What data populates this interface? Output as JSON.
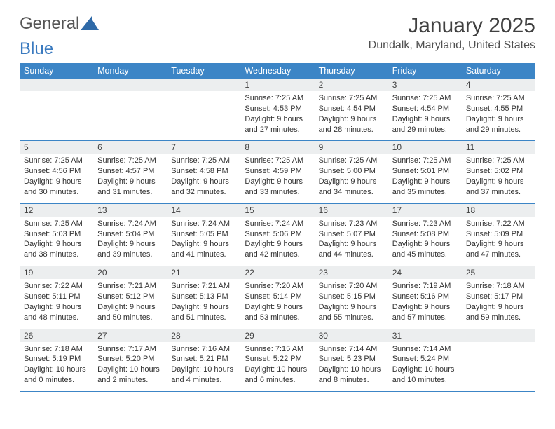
{
  "logo": {
    "text1": "General",
    "text2": "Blue"
  },
  "title": "January 2025",
  "location": "Dundalk, Maryland, United States",
  "colors": {
    "header_bg": "#3c85c6",
    "header_text": "#ffffff",
    "daynum_bg": "#eceeef",
    "rule": "#3c85c6",
    "text": "#333333",
    "title_text": "#404040"
  },
  "weekdays": [
    "Sunday",
    "Monday",
    "Tuesday",
    "Wednesday",
    "Thursday",
    "Friday",
    "Saturday"
  ],
  "weeks": [
    {
      "days": [
        null,
        null,
        null,
        {
          "n": "1",
          "sr": "7:25 AM",
          "ss": "4:53 PM",
          "dl": "9 hours and 27 minutes."
        },
        {
          "n": "2",
          "sr": "7:25 AM",
          "ss": "4:54 PM",
          "dl": "9 hours and 28 minutes."
        },
        {
          "n": "3",
          "sr": "7:25 AM",
          "ss": "4:54 PM",
          "dl": "9 hours and 29 minutes."
        },
        {
          "n": "4",
          "sr": "7:25 AM",
          "ss": "4:55 PM",
          "dl": "9 hours and 29 minutes."
        }
      ]
    },
    {
      "days": [
        {
          "n": "5",
          "sr": "7:25 AM",
          "ss": "4:56 PM",
          "dl": "9 hours and 30 minutes."
        },
        {
          "n": "6",
          "sr": "7:25 AM",
          "ss": "4:57 PM",
          "dl": "9 hours and 31 minutes."
        },
        {
          "n": "7",
          "sr": "7:25 AM",
          "ss": "4:58 PM",
          "dl": "9 hours and 32 minutes."
        },
        {
          "n": "8",
          "sr": "7:25 AM",
          "ss": "4:59 PM",
          "dl": "9 hours and 33 minutes."
        },
        {
          "n": "9",
          "sr": "7:25 AM",
          "ss": "5:00 PM",
          "dl": "9 hours and 34 minutes."
        },
        {
          "n": "10",
          "sr": "7:25 AM",
          "ss": "5:01 PM",
          "dl": "9 hours and 35 minutes."
        },
        {
          "n": "11",
          "sr": "7:25 AM",
          "ss": "5:02 PM",
          "dl": "9 hours and 37 minutes."
        }
      ]
    },
    {
      "days": [
        {
          "n": "12",
          "sr": "7:25 AM",
          "ss": "5:03 PM",
          "dl": "9 hours and 38 minutes."
        },
        {
          "n": "13",
          "sr": "7:24 AM",
          "ss": "5:04 PM",
          "dl": "9 hours and 39 minutes."
        },
        {
          "n": "14",
          "sr": "7:24 AM",
          "ss": "5:05 PM",
          "dl": "9 hours and 41 minutes."
        },
        {
          "n": "15",
          "sr": "7:24 AM",
          "ss": "5:06 PM",
          "dl": "9 hours and 42 minutes."
        },
        {
          "n": "16",
          "sr": "7:23 AM",
          "ss": "5:07 PM",
          "dl": "9 hours and 44 minutes."
        },
        {
          "n": "17",
          "sr": "7:23 AM",
          "ss": "5:08 PM",
          "dl": "9 hours and 45 minutes."
        },
        {
          "n": "18",
          "sr": "7:22 AM",
          "ss": "5:09 PM",
          "dl": "9 hours and 47 minutes."
        }
      ]
    },
    {
      "days": [
        {
          "n": "19",
          "sr": "7:22 AM",
          "ss": "5:11 PM",
          "dl": "9 hours and 48 minutes."
        },
        {
          "n": "20",
          "sr": "7:21 AM",
          "ss": "5:12 PM",
          "dl": "9 hours and 50 minutes."
        },
        {
          "n": "21",
          "sr": "7:21 AM",
          "ss": "5:13 PM",
          "dl": "9 hours and 51 minutes."
        },
        {
          "n": "22",
          "sr": "7:20 AM",
          "ss": "5:14 PM",
          "dl": "9 hours and 53 minutes."
        },
        {
          "n": "23",
          "sr": "7:20 AM",
          "ss": "5:15 PM",
          "dl": "9 hours and 55 minutes."
        },
        {
          "n": "24",
          "sr": "7:19 AM",
          "ss": "5:16 PM",
          "dl": "9 hours and 57 minutes."
        },
        {
          "n": "25",
          "sr": "7:18 AM",
          "ss": "5:17 PM",
          "dl": "9 hours and 59 minutes."
        }
      ]
    },
    {
      "days": [
        {
          "n": "26",
          "sr": "7:18 AM",
          "ss": "5:19 PM",
          "dl": "10 hours and 0 minutes."
        },
        {
          "n": "27",
          "sr": "7:17 AM",
          "ss": "5:20 PM",
          "dl": "10 hours and 2 minutes."
        },
        {
          "n": "28",
          "sr": "7:16 AM",
          "ss": "5:21 PM",
          "dl": "10 hours and 4 minutes."
        },
        {
          "n": "29",
          "sr": "7:15 AM",
          "ss": "5:22 PM",
          "dl": "10 hours and 6 minutes."
        },
        {
          "n": "30",
          "sr": "7:14 AM",
          "ss": "5:23 PM",
          "dl": "10 hours and 8 minutes."
        },
        {
          "n": "31",
          "sr": "7:14 AM",
          "ss": "5:24 PM",
          "dl": "10 hours and 10 minutes."
        },
        null
      ]
    }
  ],
  "labels": {
    "sunrise": "Sunrise: ",
    "sunset": "Sunset: ",
    "daylight": "Daylight: "
  }
}
